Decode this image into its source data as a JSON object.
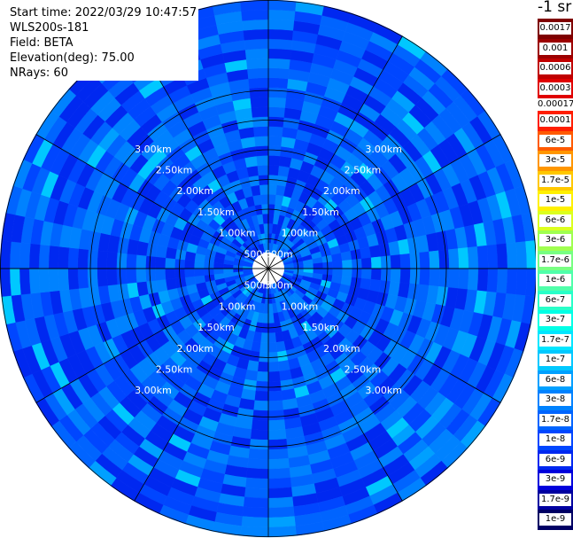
{
  "header": {
    "start_time": "Start time: 2022/03/29 10:47:57",
    "instrument": "WLS200s-181",
    "field": "Field: BETA",
    "elevation": "Elevation(deg): 75.00",
    "nrays": "NRays: 60"
  },
  "colorbar": {
    "unit": "-1 sr",
    "upper": [
      {
        "label": "0.0017",
        "color": "#7f0000"
      },
      {
        "label": "0.001",
        "color": "#9c0000"
      },
      {
        "label": "0.0006",
        "color": "#c00000"
      },
      {
        "label": "0.0003",
        "color": "#e00000"
      }
    ],
    "separator_label": "0.00017",
    "lower": [
      {
        "label": "0.0001",
        "color": "#ff1e00"
      },
      {
        "label": "6e-5",
        "color": "#ff5a00"
      },
      {
        "label": "3e-5",
        "color": "#ff9600"
      },
      {
        "label": "1.7e-5",
        "color": "#ffc800"
      },
      {
        "label": "1e-5",
        "color": "#fff000"
      },
      {
        "label": "6e-6",
        "color": "#dcff1e"
      },
      {
        "label": "3e-6",
        "color": "#a0ff50"
      },
      {
        "label": "1.7e-6",
        "color": "#78ff82"
      },
      {
        "label": "1e-6",
        "color": "#50ffaa"
      },
      {
        "label": "6e-7",
        "color": "#28ffc8"
      },
      {
        "label": "3e-7",
        "color": "#00ffe6"
      },
      {
        "label": "1.7e-7",
        "color": "#00e6ff"
      },
      {
        "label": "1e-7",
        "color": "#00c8ff"
      },
      {
        "label": "6e-8",
        "color": "#00a0ff"
      },
      {
        "label": "3e-8",
        "color": "#0082ff"
      },
      {
        "label": "1.7e-8",
        "color": "#0064ff"
      },
      {
        "label": "1e-8",
        "color": "#0046ff"
      },
      {
        "label": "6e-9",
        "color": "#0028f0"
      },
      {
        "label": "3e-9",
        "color": "#0000dc"
      },
      {
        "label": "1.7e-9",
        "color": "#0000a0"
      },
      {
        "label": "1e-9",
        "color": "#000064"
      }
    ]
  },
  "chart_data": {
    "type": "heatmap",
    "projection": "polar",
    "grid": true,
    "ray_count": 60,
    "range_rings": [
      "500m",
      "1.00km",
      "1.50km",
      "2.00km",
      "2.50km",
      "3.00km"
    ],
    "azimuth_lines_deg": [
      0,
      30,
      60,
      90,
      120,
      150,
      180,
      210,
      240,
      270,
      300,
      330
    ],
    "dominant_values": [
      "1e-8",
      "6e-9",
      "1.7e-8",
      "3e-8"
    ],
    "color_scale": "log",
    "value_range": [
      "1e-9",
      "0.0017"
    ]
  }
}
